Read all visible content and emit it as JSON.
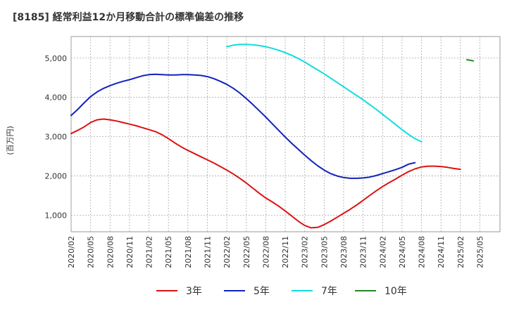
{
  "chart_data": {
    "type": "line",
    "title": "[8185]  経常利益12か月移動合計の標準偏差の推移",
    "ylabel": "(百万円)",
    "xlabel": "",
    "x_ticks": [
      "2020/02",
      "2020/05",
      "2020/08",
      "2020/11",
      "2021/02",
      "2021/05",
      "2021/08",
      "2021/11",
      "2022/02",
      "2022/05",
      "2022/08",
      "2022/11",
      "2023/02",
      "2023/05",
      "2023/08",
      "2023/11",
      "2024/02",
      "2024/05",
      "2024/08",
      "2024/11",
      "2025/02",
      "2025/05"
    ],
    "y_ticks": [
      1000,
      2000,
      3000,
      4000,
      5000
    ],
    "y_tick_labels": [
      "1,000",
      "2,000",
      "3,000",
      "4,000",
      "5,000"
    ],
    "ylim": [
      580,
      5550
    ],
    "grid": true,
    "legend_position": "bottom",
    "series": [
      {
        "name": "3年",
        "color": "#dd1111",
        "start_index": 0,
        "values": [
          3080,
          3160,
          3250,
          3360,
          3430,
          3450,
          3430,
          3400,
          3360,
          3320,
          3280,
          3230,
          3180,
          3130,
          3050,
          2950,
          2840,
          2740,
          2650,
          2570,
          2490,
          2410,
          2330,
          2240,
          2150,
          2050,
          1940,
          1820,
          1690,
          1560,
          1440,
          1340,
          1230,
          1110,
          980,
          850,
          740,
          680,
          690,
          760,
          850,
          950,
          1050,
          1150,
          1260,
          1380,
          1500,
          1620,
          1730,
          1830,
          1920,
          2020,
          2110,
          2180,
          2230,
          2250,
          2250,
          2240,
          2220,
          2190,
          2170
        ]
      },
      {
        "name": "5年",
        "color": "#1122bb",
        "start_index": 0,
        "values": [
          3540,
          3690,
          3860,
          4020,
          4140,
          4230,
          4300,
          4360,
          4410,
          4450,
          4500,
          4550,
          4580,
          4590,
          4580,
          4570,
          4570,
          4580,
          4580,
          4570,
          4560,
          4530,
          4480,
          4410,
          4330,
          4230,
          4110,
          3970,
          3820,
          3660,
          3500,
          3330,
          3160,
          2990,
          2830,
          2680,
          2530,
          2390,
          2260,
          2150,
          2060,
          2000,
          1960,
          1940,
          1940,
          1950,
          1970,
          2010,
          2060,
          2110,
          2160,
          2220,
          2300,
          2340
        ]
      },
      {
        "name": "7年",
        "color": "#11dddd",
        "start_index": 24,
        "values": [
          5290,
          5330,
          5350,
          5350,
          5340,
          5320,
          5290,
          5250,
          5200,
          5140,
          5070,
          4990,
          4900,
          4800,
          4700,
          4600,
          4490,
          4380,
          4270,
          4160,
          4050,
          3940,
          3820,
          3700,
          3570,
          3440,
          3310,
          3180,
          3060,
          2950,
          2870
        ]
      },
      {
        "name": "10年",
        "color": "#228822",
        "start_index": 61,
        "values": [
          4960,
          4930
        ]
      }
    ]
  }
}
